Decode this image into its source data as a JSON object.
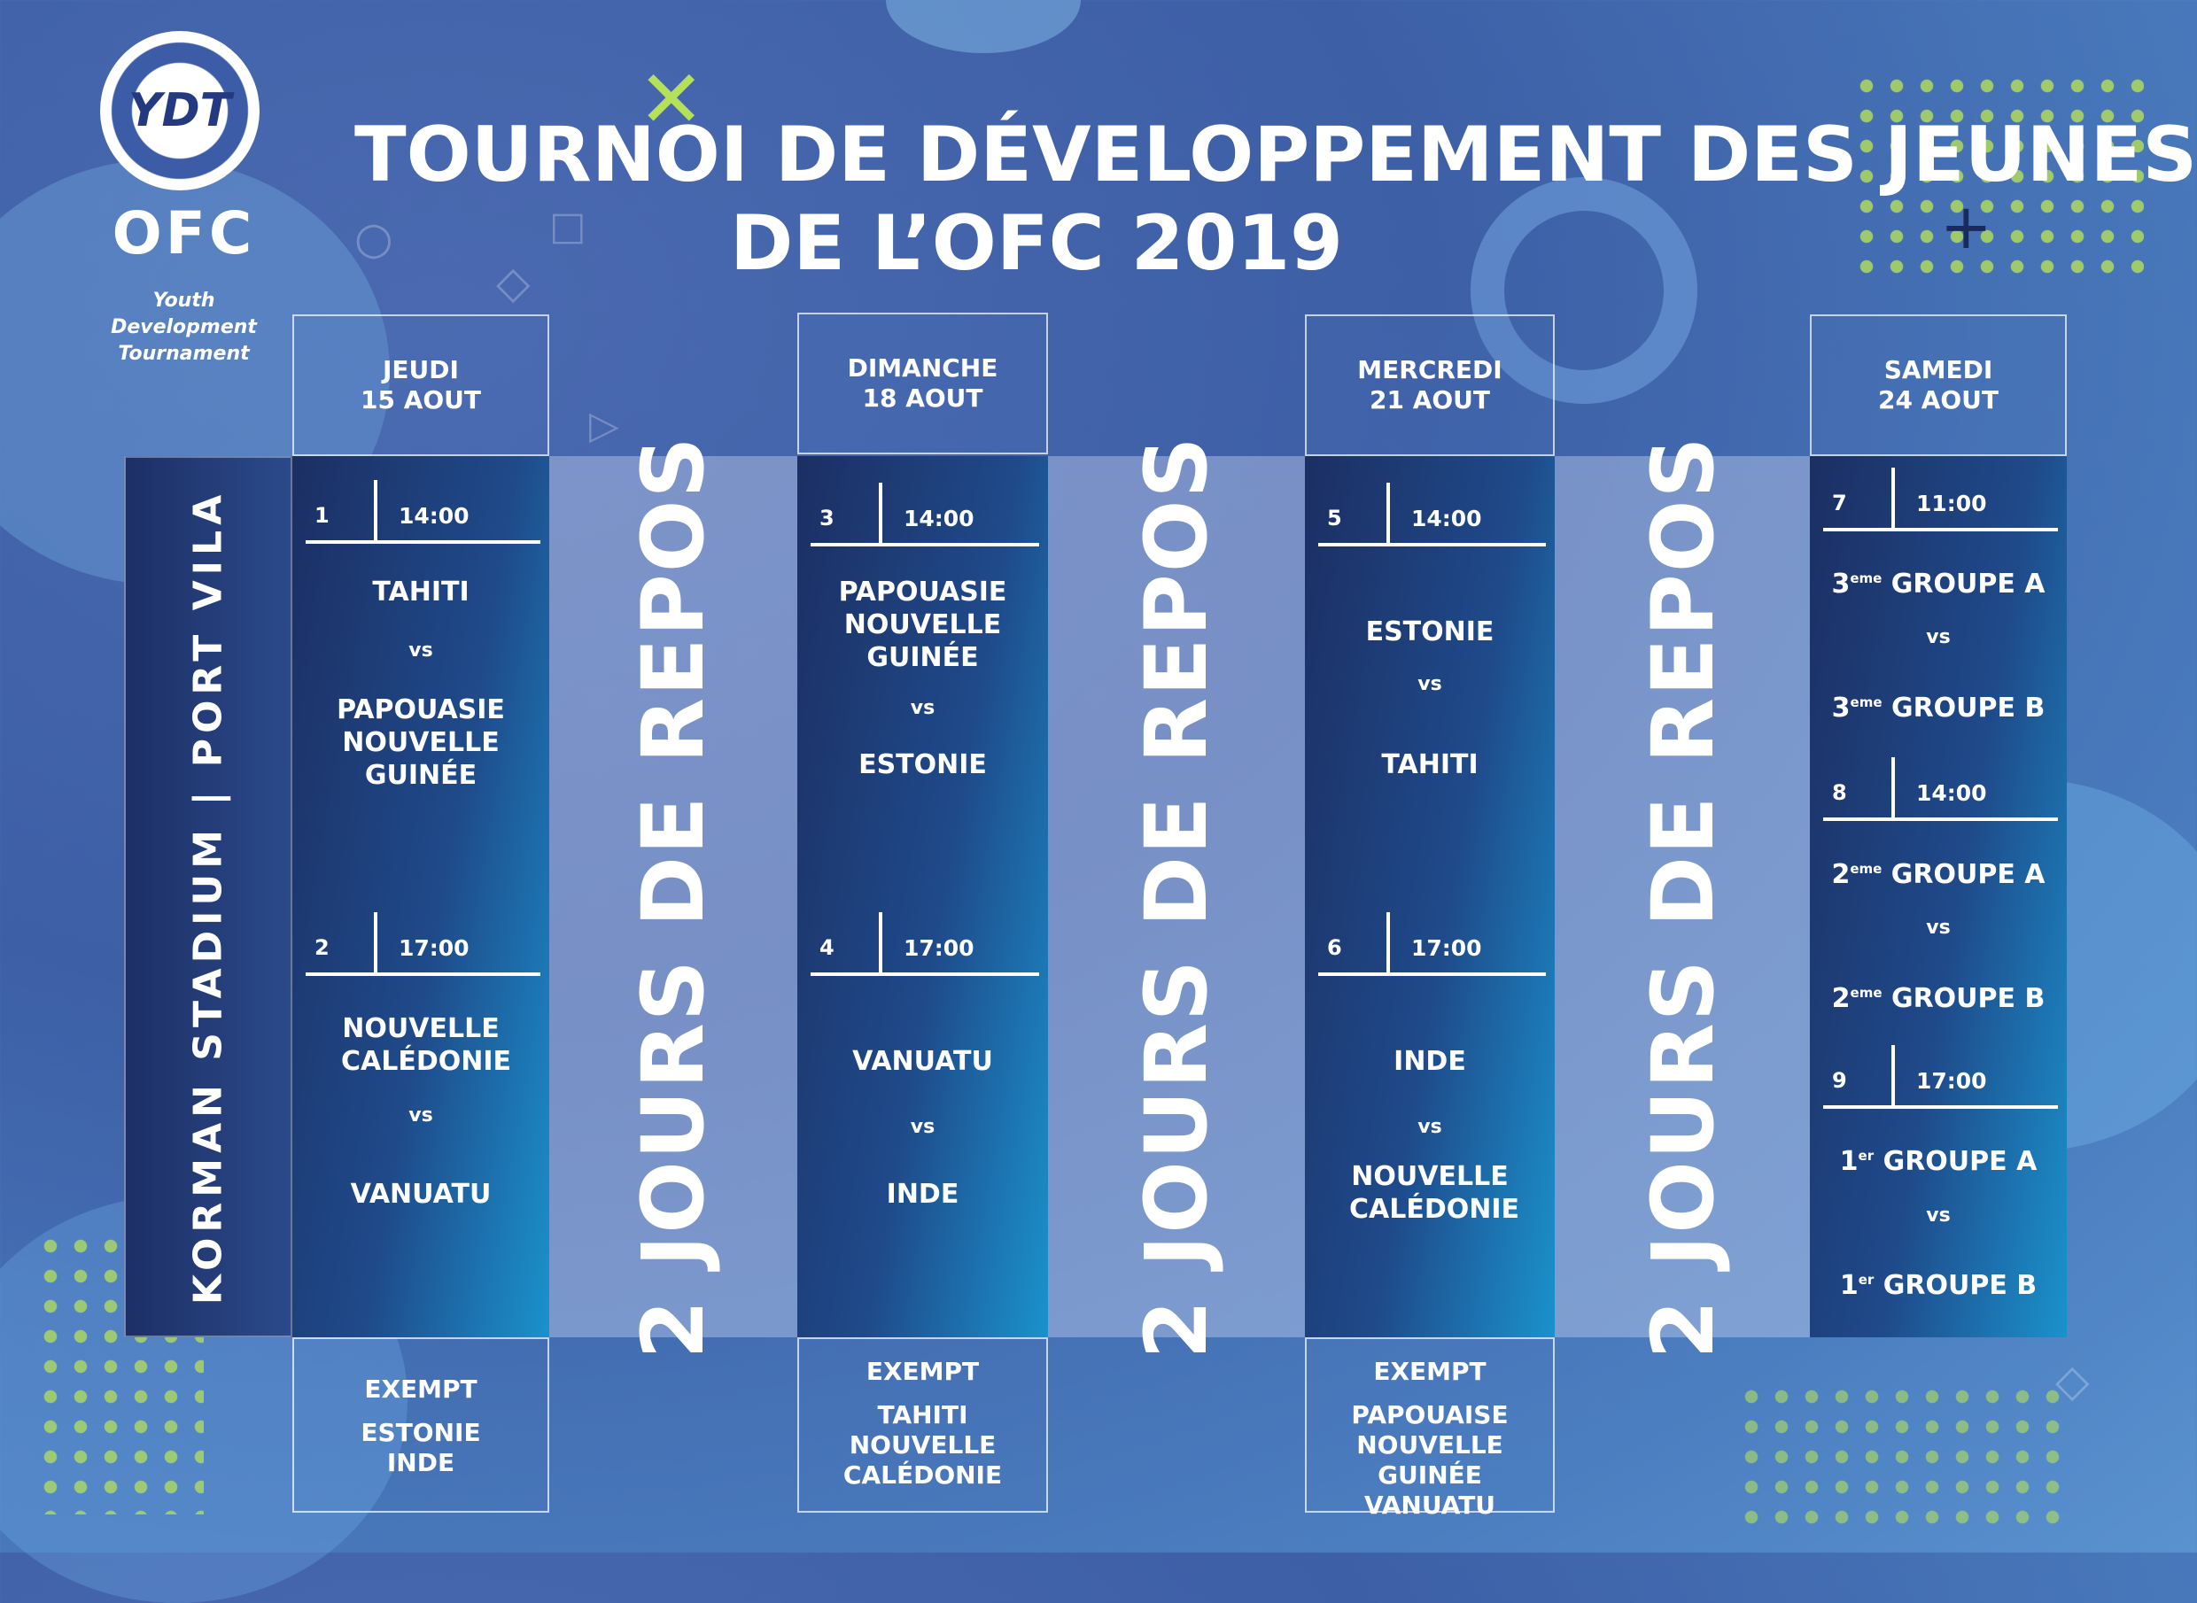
{
  "logo": {
    "seal": "YDT",
    "brand": "OFC",
    "subtitle_line1": "Youth Development",
    "subtitle_line2": "Tournament"
  },
  "title": {
    "line1": "TOURNOI DE DÉVELOPPEMENT DES JEUNES",
    "line2": "DE L’OFC 2019"
  },
  "venue": "KORMAN STADIUM | PORT VILA",
  "rest_label": "2 JOURS DE REPOS",
  "days": [
    {
      "day": "JEUDI",
      "date": "15 AOUT",
      "matches": [
        {
          "num": "1",
          "time": "14:00",
          "home": "TAHITI",
          "vs": "vs",
          "away": "PAPOUASIE NOUVELLE GUINÉE"
        },
        {
          "num": "2",
          "time": "17:00",
          "home": "NOUVELLE CALÉDONIE",
          "vs": "vs",
          "away": "VANUATU"
        }
      ],
      "exempt_label": "EXEMPT",
      "exempt_teams": [
        "ESTONIE",
        "INDE"
      ]
    },
    {
      "day": "DIMANCHE",
      "date": "18 AOUT",
      "matches": [
        {
          "num": "3",
          "time": "14:00",
          "home": "PAPOUASIE NOUVELLE GUINÉE",
          "vs": "vs",
          "away": "ESTONIE"
        },
        {
          "num": "4",
          "time": "17:00",
          "home": "VANUATU",
          "vs": "vs",
          "away": "INDE"
        }
      ],
      "exempt_label": "EXEMPT",
      "exempt_teams": [
        "TAHITI",
        "NOUVELLE",
        "CALÉDONIE"
      ]
    },
    {
      "day": "MERCREDI",
      "date": "21 AOUT",
      "matches": [
        {
          "num": "5",
          "time": "14:00",
          "home": "ESTONIE",
          "vs": "vs",
          "away": "TAHITI"
        },
        {
          "num": "6",
          "time": "17:00",
          "home": "INDE",
          "vs": "vs",
          "away": "NOUVELLE CALÉDONIE"
        }
      ],
      "exempt_label": "EXEMPT",
      "exempt_teams": [
        "PAPOUAISE",
        "NOUVELLE GUINÉE",
        "VANUATU"
      ]
    },
    {
      "day": "SAMEDI",
      "date": "24 AOUT",
      "matches": [
        {
          "num": "7",
          "time": "11:00",
          "home_rank": "3",
          "home_sup": "eme",
          "home": "GROUPE A",
          "vs": "vs",
          "away_rank": "3",
          "away_sup": "eme",
          "away": "GROUPE B"
        },
        {
          "num": "8",
          "time": "14:00",
          "home_rank": "2",
          "home_sup": "eme",
          "home": "GROUPE A",
          "vs": "vs",
          "away_rank": "2",
          "away_sup": "eme",
          "away": "GROUPE B"
        },
        {
          "num": "9",
          "time": "17:00",
          "home_rank": "1",
          "home_sup": "er",
          "home": "GROUPE A",
          "vs": "vs",
          "away_rank": "1",
          "away_sup": "er",
          "away": "GROUPE B"
        }
      ]
    }
  ]
}
